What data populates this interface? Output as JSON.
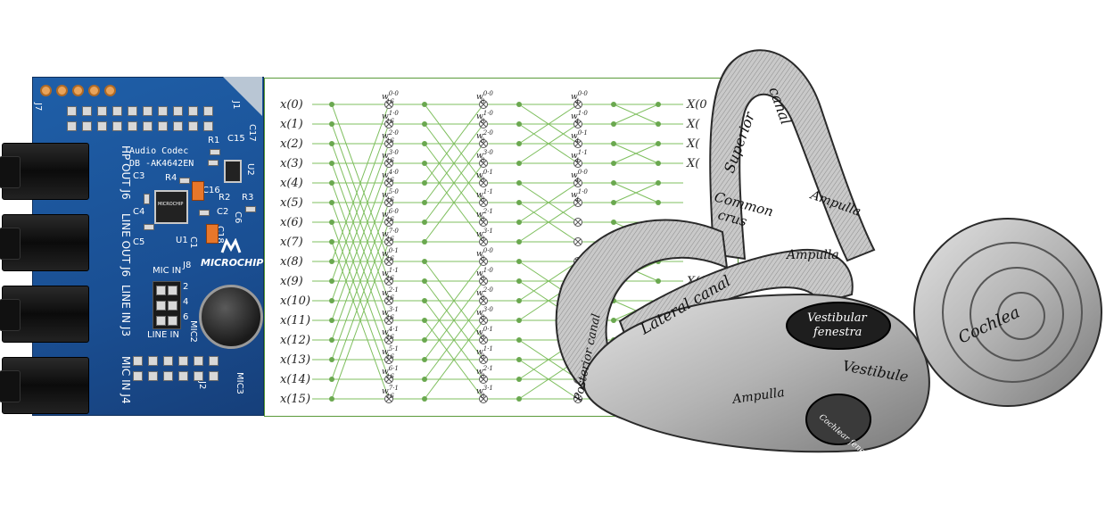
{
  "board": {
    "codec_line1": "Audio Codec",
    "codec_line2": "DB -AK4642EN",
    "brand": "MICROCHIP",
    "chip_marking": "MICROCHIP",
    "jack_labels": [
      "HP OUT J6",
      "LINE OUT J6",
      "LINE IN J3",
      "MIC IN J4"
    ],
    "refs": {
      "j7": "J7",
      "j1": "J1",
      "j2": "J2",
      "j8": "J8",
      "r1": "R1",
      "r2": "R2",
      "r3": "R3",
      "r4": "R4",
      "c1": "C1",
      "c2": "C2",
      "c3": "C3",
      "c4": "C4",
      "c5": "C5",
      "c6": "C6",
      "c15": "C15",
      "c16": "C16",
      "c17": "C17",
      "c18": "C18",
      "u1": "U1",
      "u2": "U2",
      "mic2": "MIC2",
      "mic3": "MIC3"
    },
    "jumper_top": "MIC IN",
    "jumper_bottom": "LINE IN",
    "jumper_pins": [
      "2",
      "4",
      "6"
    ],
    "colors": {
      "pcb": "#1a4f93",
      "pad": "#e9a45b",
      "silkscreen": "#ffffff"
    }
  },
  "fft": {
    "inputs": [
      "x(0)",
      "x(1)",
      "x(2)",
      "x(3)",
      "x(4)",
      "x(5)",
      "x(6)",
      "x(7)",
      "x(8)",
      "x(9)",
      "x(10)",
      "x(11)",
      "x(12)",
      "x(13)",
      "x(14)",
      "x(15)"
    ],
    "twiddle_stage1": [
      {
        "base": "w",
        "sup": "0·0",
        "sub": "16"
      },
      {
        "base": "w",
        "sup": "1·0",
        "sub": "16"
      },
      {
        "base": "w",
        "sup": "2·0",
        "sub": "16"
      },
      {
        "base": "w",
        "sup": "3·0",
        "sub": "16"
      },
      {
        "base": "w",
        "sup": "4·0",
        "sub": "16"
      },
      {
        "base": "w",
        "sup": "5·0",
        "sub": "16"
      },
      {
        "base": "w",
        "sup": "6·0",
        "sub": "16"
      },
      {
        "base": "w",
        "sup": "7·0",
        "sub": "16"
      },
      {
        "base": "w",
        "sup": "0·1",
        "sub": "16"
      },
      {
        "base": "w",
        "sup": "1·1",
        "sub": "16"
      },
      {
        "base": "w",
        "sup": "2·1",
        "sub": "16"
      },
      {
        "base": "w",
        "sup": "3·1",
        "sub": "16"
      },
      {
        "base": "w",
        "sup": "4·1",
        "sub": "16"
      },
      {
        "base": "w",
        "sup": "5·1",
        "sub": "16"
      },
      {
        "base": "w",
        "sup": "6·1",
        "sub": "16"
      },
      {
        "base": "w",
        "sup": "7·1",
        "sub": "16"
      }
    ],
    "twiddle_stage2": [
      {
        "base": "w",
        "sup": "0·0",
        "sub": "8"
      },
      {
        "base": "w",
        "sup": "1·0",
        "sub": "8"
      },
      {
        "base": "w",
        "sup": "2·0",
        "sub": "8"
      },
      {
        "base": "w",
        "sup": "3·0",
        "sub": "8"
      },
      {
        "base": "w",
        "sup": "0·1",
        "sub": "8"
      },
      {
        "base": "w",
        "sup": "1·1",
        "sub": "8"
      },
      {
        "base": "w",
        "sup": "2·1",
        "sub": "8"
      },
      {
        "base": "w",
        "sup": "3·1",
        "sub": "8"
      },
      {
        "base": "w",
        "sup": "0·0",
        "sub": "8"
      },
      {
        "base": "w",
        "sup": "1·0",
        "sub": "8"
      },
      {
        "base": "w",
        "sup": "2·0",
        "sub": "8"
      },
      {
        "base": "w",
        "sup": "3·0",
        "sub": "8"
      },
      {
        "base": "w",
        "sup": "0·1",
        "sub": "8"
      },
      {
        "base": "w",
        "sup": "1·1",
        "sub": "8"
      },
      {
        "base": "w",
        "sup": "2·1",
        "sub": "8"
      },
      {
        "base": "w",
        "sup": "3·1",
        "sub": "8"
      }
    ],
    "twiddle_stage3": [
      {
        "base": "w",
        "sup": "0·0",
        "sub": "4"
      },
      {
        "base": "w",
        "sup": "1·0",
        "sub": "4"
      },
      {
        "base": "w",
        "sup": "0·1",
        "sub": "4"
      },
      {
        "base": "w",
        "sup": "1·1",
        "sub": "4"
      },
      {
        "base": "w",
        "sup": "0·0",
        "sub": "4"
      },
      {
        "base": "w",
        "sup": "1·0",
        "sub": "4"
      }
    ],
    "outputs_visible": [
      "X(0",
      "X(",
      "X(",
      "X(",
      "X(1",
      "X(1"
    ],
    "colors": {
      "node": "#6aa84f",
      "line": "#7fbf5f",
      "frame": "#5a9a3a"
    }
  },
  "ear": {
    "labels": {
      "superior": "Superior",
      "canal_top": "canal",
      "common_crus": "Common",
      "crus": "crus",
      "ampulla_top": "Ampulla",
      "ampulla_mid": "Ampulla",
      "ampulla_bottom": "Ampulla",
      "lateral_canal": "Lateral canal",
      "posterior_canal": "Posterior canal",
      "vestibular_fenestra_1": "Vestibular",
      "vestibular_fenestra_2": "fenestra",
      "vestibule": "Vestibule",
      "cochlea": "Cochlea",
      "cochlear_fenestra": "Cochlear fenestra"
    },
    "colors": {
      "bone": "#bdbdbd",
      "shadow": "#6e6e6e",
      "outline": "#2a2a2a",
      "window": "#1e1e1e"
    }
  }
}
